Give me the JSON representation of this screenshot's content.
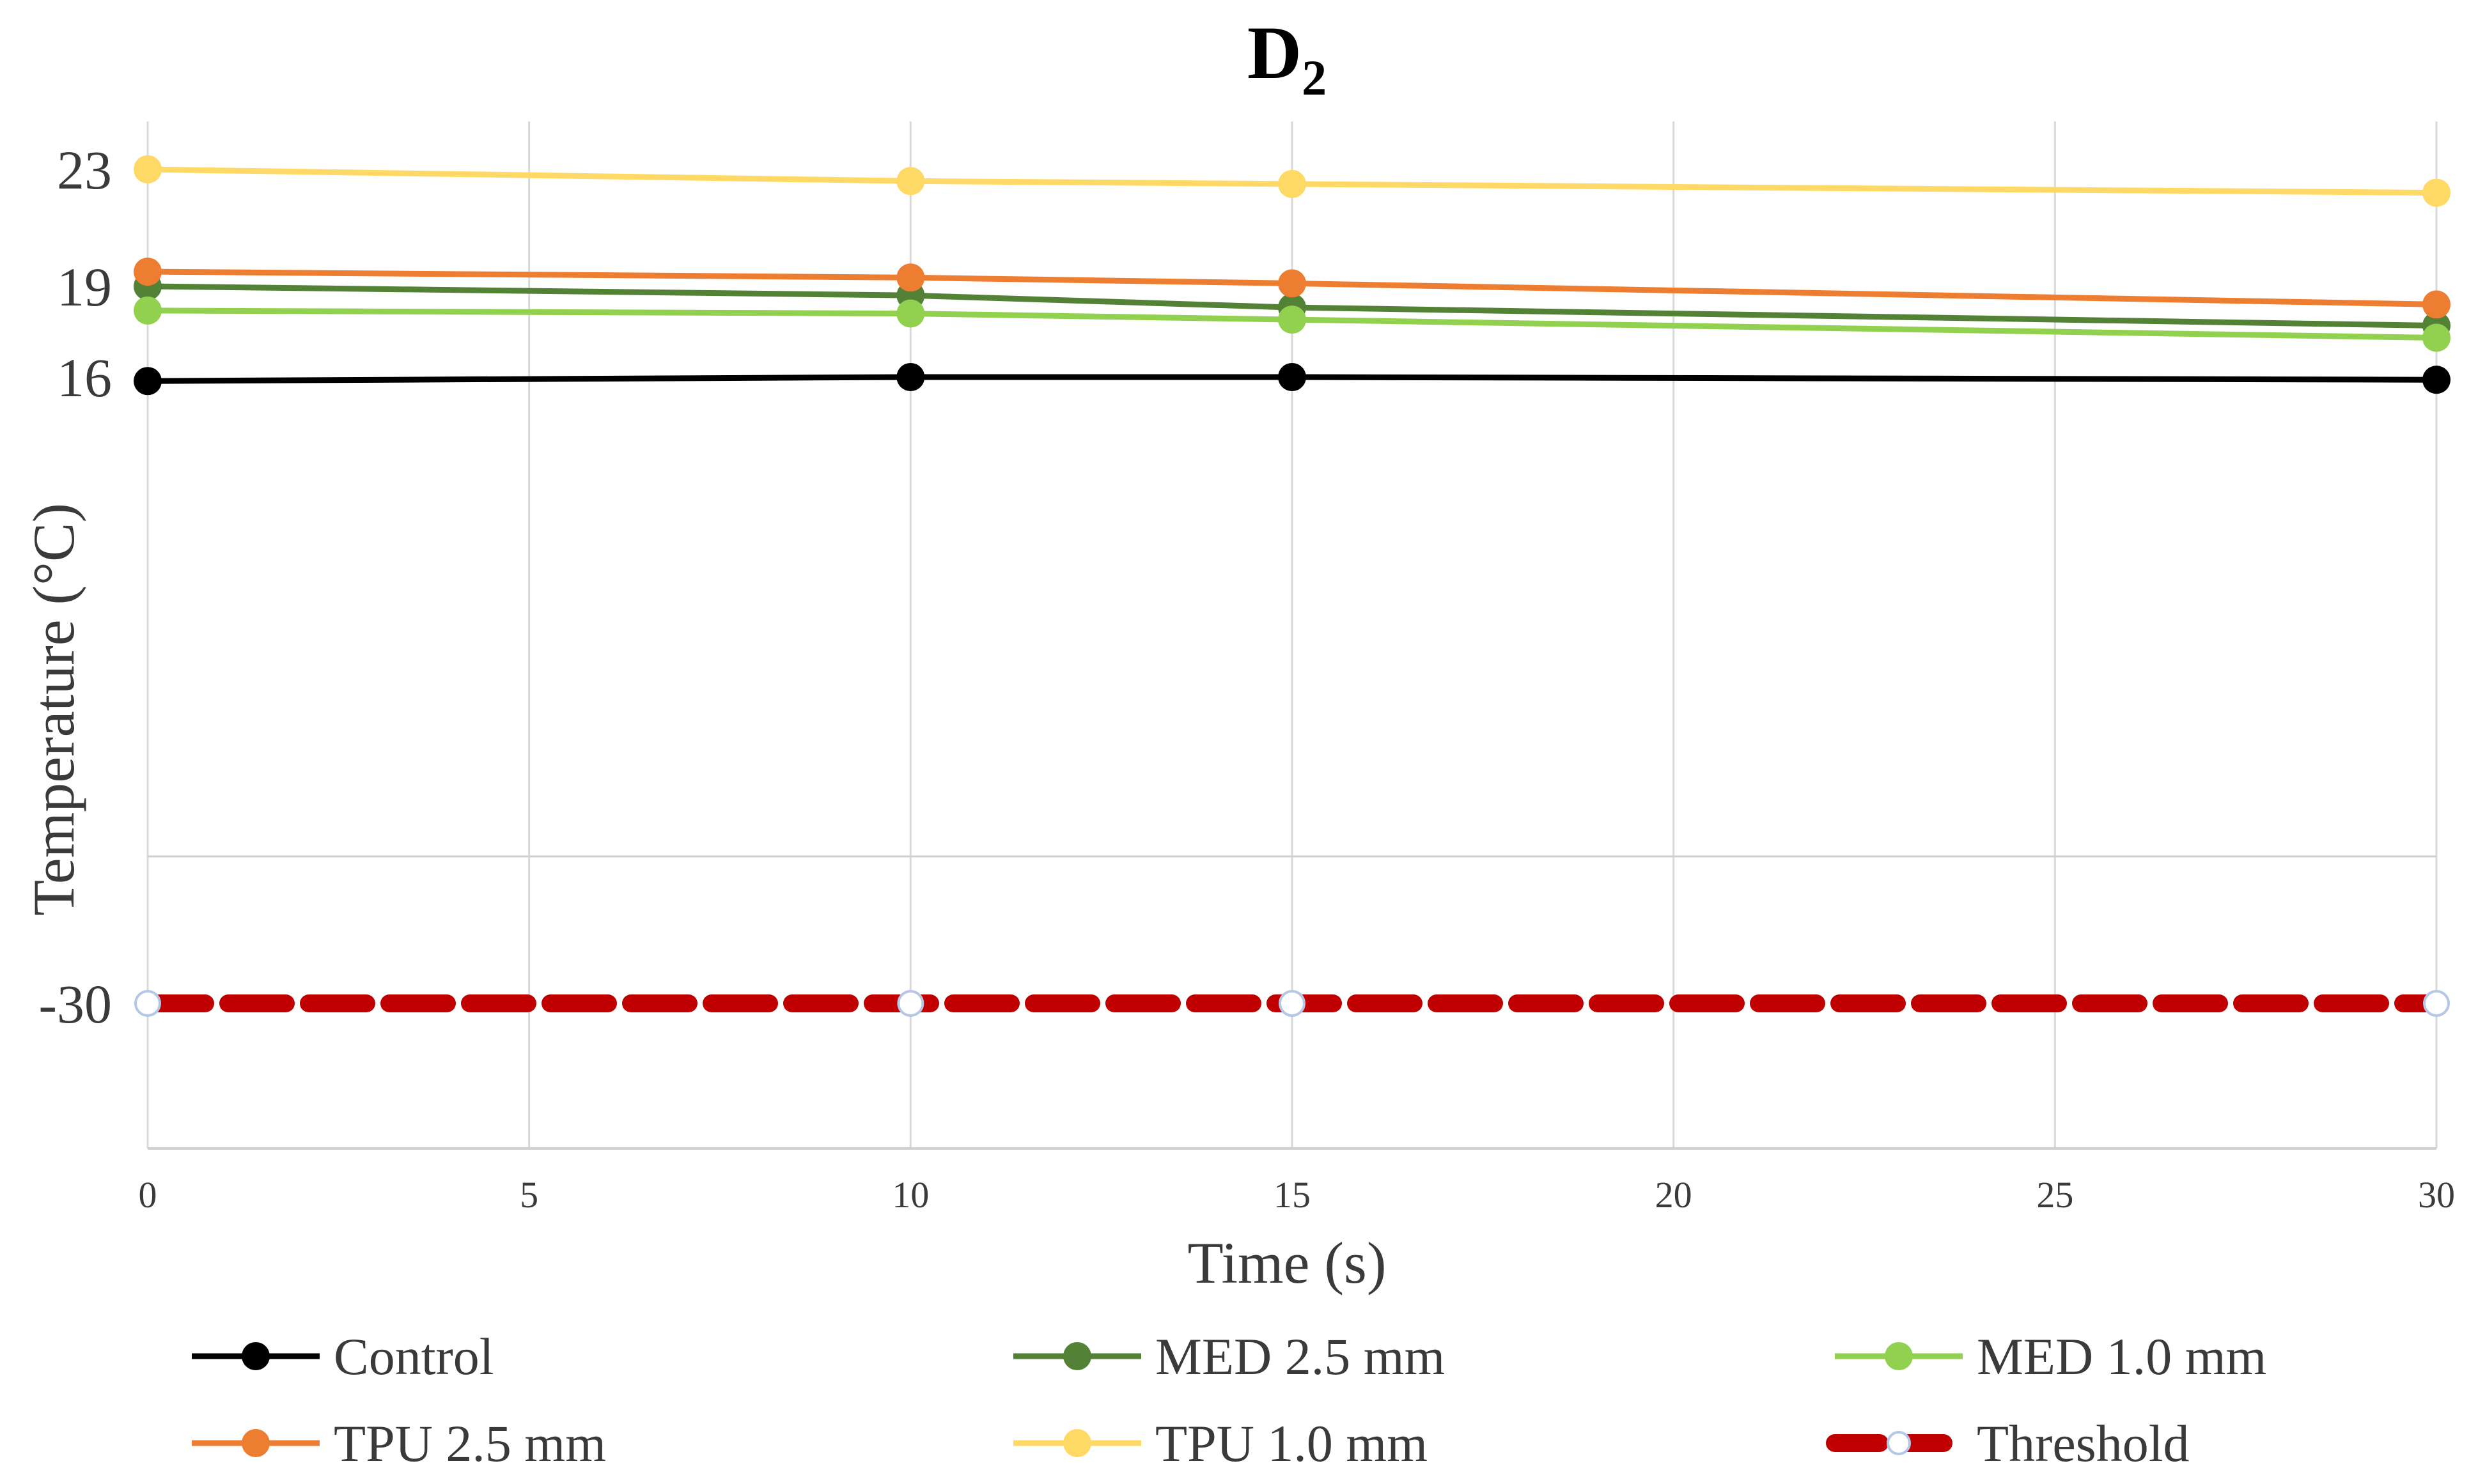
{
  "chart_data": {
    "type": "line",
    "title": "D",
    "title_subscript": "2",
    "xlabel": "Time (s)",
    "ylabel": "Temperature (°C)",
    "x": [
      0,
      10,
      15,
      30
    ],
    "x_ticks": [
      0,
      5,
      10,
      15,
      20,
      25,
      30
    ],
    "xlim": [
      0,
      30
    ],
    "y_ticks_labeled": [
      23,
      19,
      16,
      -30
    ],
    "y_gridline": -20,
    "ylim": [
      -40,
      25
    ],
    "grid": true,
    "legend_position": "bottom",
    "series": [
      {
        "name": "Control",
        "color": "#000000",
        "values": [
          15.7,
          16.0,
          16.0,
          15.8
        ],
        "style": "solid"
      },
      {
        "name": "MED 2.5 mm",
        "color": "#538135",
        "values": [
          19.0,
          18.7,
          18.3,
          17.7
        ],
        "style": "solid"
      },
      {
        "name": "MED 1.0 mm",
        "color": "#92D050",
        "values": [
          18.2,
          18.1,
          17.9,
          17.3
        ],
        "style": "solid"
      },
      {
        "name": "TPU 2.5 mm",
        "color": "#ED7D31",
        "values": [
          19.5,
          19.3,
          19.1,
          18.4
        ],
        "style": "solid"
      },
      {
        "name": "TPU 1.0 mm",
        "color": "#FFD966",
        "values": [
          23.0,
          22.6,
          22.5,
          22.2
        ],
        "style": "solid"
      },
      {
        "name": "Threshold",
        "color": "#C00000",
        "values": [
          -30,
          -30,
          -30,
          -30
        ],
        "style": "dashed"
      }
    ]
  }
}
